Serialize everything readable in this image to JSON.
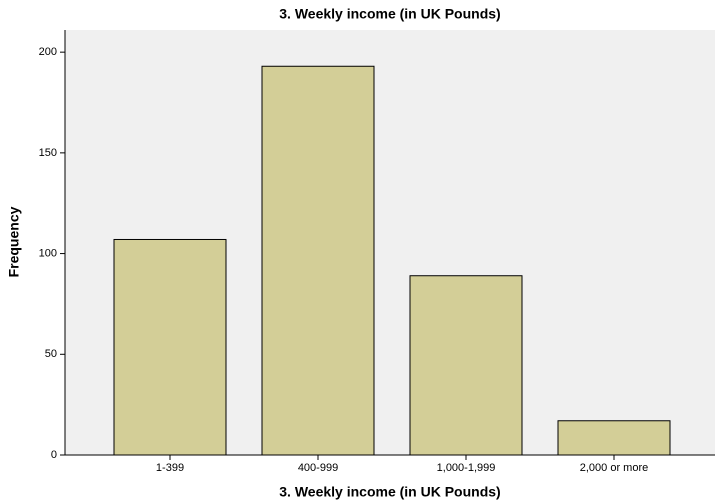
{
  "chart_data": {
    "type": "bar",
    "title": "3. Weekly income (in UK Pounds)",
    "x_label": "3. Weekly income (in UK Pounds)",
    "y_label": "Frequency",
    "categories": [
      "1-399",
      "400-999",
      "1,000-1,999",
      "2,000 or more"
    ],
    "values": [
      107,
      193,
      89,
      17
    ],
    "color": "#d3ce97",
    "ylim": [
      0,
      211
    ],
    "yticks": [
      0,
      50,
      100,
      150,
      200
    ],
    "grid": false
  }
}
